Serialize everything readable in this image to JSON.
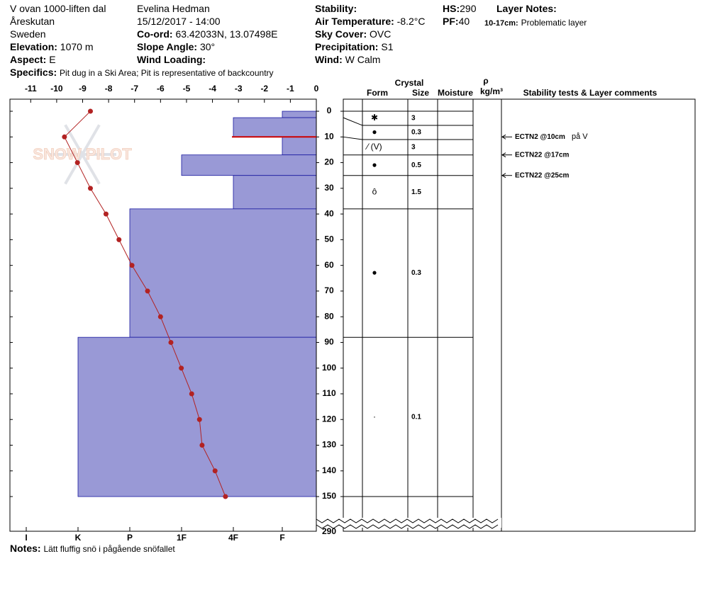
{
  "header": {
    "location": "V ovan 1000-liften dal",
    "area": "Åreskutan",
    "country": "Sweden",
    "elevation_label": "Elevation:",
    "elevation": "1070 m",
    "aspect_label": "Aspect:",
    "aspect": "E",
    "specifics_label": "Specifics:",
    "specifics": "Pit dug in a Ski Area; Pit is representative of backcountry",
    "observer": "Evelina Hedman",
    "datetime": "15/12/2017 - 14:00",
    "coord_label": "Co-ord:",
    "coord": "63.42033N, 13.07498E",
    "slope_label": "Slope Angle:",
    "slope": "30°",
    "wind_loading_label": "Wind Loading:",
    "stability_label": "Stability:",
    "air_temp_label": "Air Temperature:",
    "air_temp": "-8.2°C",
    "sky_label": "Sky Cover:",
    "sky": "OVC",
    "precip_label": "Precipitation:",
    "precip": "S1",
    "wind_label": "Wind:",
    "wind": "W Calm",
    "hs_label": "HS:",
    "hs": "290",
    "pf_label": "PF:",
    "pf": "40",
    "layer_notes_label": "Layer Notes:",
    "layer_notes_range": "10-17cm:",
    "layer_notes": "Problematic layer"
  },
  "notes_label": "Notes:",
  "notes": "Lätt fluffig snö i pågående snöfallet",
  "chart_data": {
    "type": "snowpit",
    "watermark": "SNOW PILOT",
    "xlim": [
      -11.8,
      0
    ],
    "xticks": [
      -11,
      -10,
      -9,
      -8,
      -7,
      -6,
      -5,
      -4,
      -3,
      -2,
      -1,
      0
    ],
    "ylim": [
      -4.7,
      163.5
    ],
    "yticks": [
      0,
      10,
      20,
      30,
      40,
      50,
      60,
      70,
      80,
      90,
      100,
      110,
      120,
      130,
      140,
      150
    ],
    "ybreak_tick": 290,
    "hardness_categories": [
      "I",
      "K",
      "P",
      "1F",
      "4F",
      "F"
    ],
    "layer_color": "#9999d6",
    "temperature": {
      "color": "#b22222",
      "depths": [
        0,
        10,
        20,
        30,
        40,
        50,
        60,
        70,
        80,
        90,
        100,
        110,
        120,
        130,
        140,
        150
      ],
      "values": [
        -8.7,
        -9.7,
        -9.2,
        -8.7,
        -8.1,
        -7.6,
        -7.1,
        -6.5,
        -6.0,
        -5.6,
        -5.2,
        -4.8,
        -4.5,
        -4.4,
        -3.9,
        -3.5
      ]
    },
    "layers": [
      {
        "top": 0,
        "bottom": 2.5,
        "hardness": "F",
        "form": "✱",
        "size": 3
      },
      {
        "top": 2.5,
        "bottom": 10,
        "hardness": "4F",
        "form": "●",
        "size": 0.3
      },
      {
        "top": 10,
        "bottom": 17,
        "hardness": "F",
        "form": "⁄ (V)",
        "size": 3
      },
      {
        "top": 17,
        "bottom": 25,
        "hardness": "1F",
        "form": "●",
        "size": 0.5
      },
      {
        "top": 25,
        "bottom": 38,
        "hardness": "4F",
        "form": "ô",
        "size": 1.5
      },
      {
        "top": 38,
        "bottom": 88,
        "hardness": "P",
        "form": "●",
        "size": 0.3
      },
      {
        "top": 88,
        "bottom": 150,
        "hardness": "K",
        "form": "·",
        "size": 0.1
      }
    ],
    "table_headers": {
      "crystal": "Crystal",
      "form": "Form",
      "size": "Size",
      "moisture": "Moisture",
      "rho": "ρ",
      "density": "kg/m³",
      "comments": "Stability tests & Layer comments"
    },
    "stability_tests": [
      {
        "depth": 10,
        "label": "ECTN2 @10cm",
        "comment": "på V",
        "critical": true
      },
      {
        "depth": 17,
        "label": "ECTN22 @17cm"
      },
      {
        "depth": 25,
        "label": "ECTN22 @25cm"
      }
    ]
  }
}
